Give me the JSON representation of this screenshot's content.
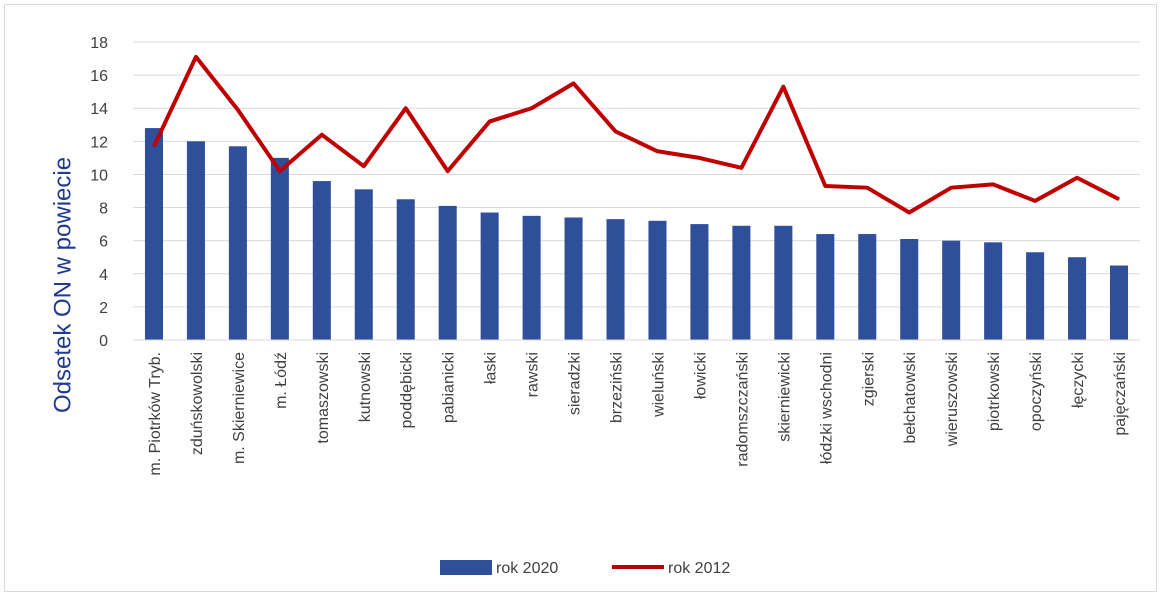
{
  "chart_data": {
    "type": "bar",
    "title": "",
    "xlabel": "",
    "ylabel": "Odsetek ON w powiecie",
    "ylim": [
      0,
      18
    ],
    "yticks": [
      0,
      2,
      4,
      6,
      8,
      10,
      12,
      14,
      16,
      18
    ],
    "grid": true,
    "legend_position": "bottom",
    "categories": [
      "m. Piotrków Tryb.",
      "zduńskowolski",
      "m. Skierniewice",
      "m. Łódź",
      "tomaszowski",
      "kutnowski",
      "poddębicki",
      "pabianicki",
      "łaski",
      "rawski",
      "sieradzki",
      "brzeziński",
      "wieluński",
      "łowicki",
      "radomszczański",
      "skierniewicki",
      "łódzki wschodni",
      "zgierski",
      "bełchatowski",
      "wieruszowski",
      "piotrkowski",
      "opoczyński",
      "łęczycki",
      "pajęczański"
    ],
    "series": [
      {
        "name": "rok 2020",
        "kind": "bar",
        "color": "#2f4f9a",
        "values": [
          12.8,
          12.0,
          11.7,
          11.0,
          9.6,
          9.1,
          8.5,
          8.1,
          7.7,
          7.5,
          7.4,
          7.3,
          7.2,
          7.0,
          6.9,
          6.9,
          6.4,
          6.4,
          6.1,
          6.0,
          5.9,
          5.3,
          5.0,
          4.5
        ]
      },
      {
        "name": "rok 2012",
        "kind": "line",
        "color": "#c00000",
        "values": [
          11.7,
          17.1,
          13.9,
          10.2,
          12.4,
          10.5,
          14.0,
          10.2,
          13.2,
          14.0,
          15.5,
          12.6,
          11.4,
          11.0,
          10.4,
          15.3,
          9.3,
          9.2,
          7.7,
          9.2,
          9.4,
          8.4,
          9.8,
          8.5
        ]
      }
    ]
  }
}
